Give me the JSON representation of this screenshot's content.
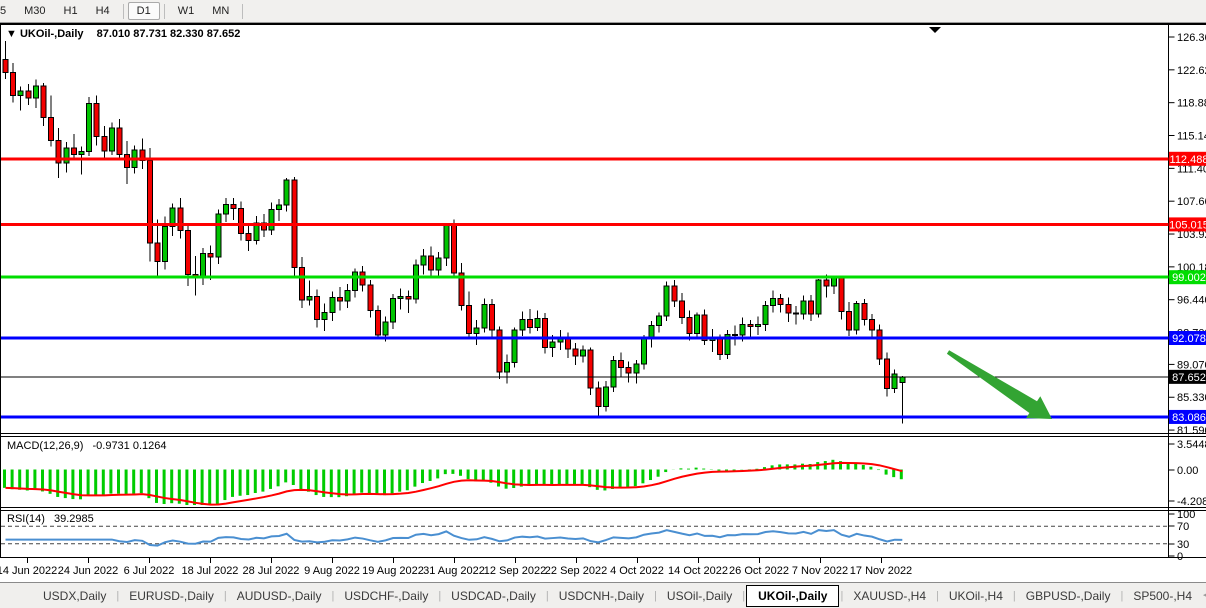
{
  "toolbar": {
    "items": [
      "5",
      "M30",
      "H1",
      "H4",
      "D1",
      "W1",
      "MN"
    ],
    "active": "D1"
  },
  "tabs": {
    "items": [
      "USDX,Daily",
      "EURUSD-,Daily",
      "AUDUSD-,Daily",
      "USDCHF-,Daily",
      "USDCAD-,Daily",
      "USDCNH-,Daily",
      "USOil-,Daily",
      "UKOil-,Daily",
      "XAUUSD-,H4",
      "UKOil-,H4",
      "GBPUSD-,Daily",
      "SP500-,H4"
    ],
    "active_index": 7,
    "nav_left_icon": "◄",
    "nav_right_icon": "►"
  },
  "chart_data": {
    "type": "candlestick",
    "symbol": "UKOil-,Daily",
    "timeframe": "Daily",
    "title_ohlc": "87.010 87.731 82.330 87.652",
    "dropdown_icon": "▼",
    "colors": {
      "bull": "#00c400",
      "bear": "#f40000",
      "wick": "#000000",
      "level_red": "#ff0000",
      "level_green": "#00dd00",
      "level_blue": "#0000ff",
      "level_black": "#000000",
      "arrow_green": "#33a433",
      "macd_bar": "#00cc00",
      "macd_signal": "#ff0000",
      "rsi_line": "#4a8fd1"
    },
    "y_ticks": [
      "126.360",
      "122.620",
      "118.880",
      "115.140",
      "111.400",
      "107.660",
      "103.920",
      "100.180",
      "96.440",
      "92.700",
      "89.070",
      "85.330",
      "81.590"
    ],
    "x_labels": [
      "14 Jun 2022",
      "24 Jun 2022",
      "6 Jul 2022",
      "18 Jul 2022",
      "28 Jul 2022",
      "9 Aug 2022",
      "19 Aug 2022",
      "31 Aug 2022",
      "12 Sep 2022",
      "22 Sep 2022",
      "4 Oct 2022",
      "14 Oct 2022",
      "26 Oct 2022",
      "7 Nov 2022",
      "17 Nov 2022"
    ],
    "levels": [
      {
        "price": 112.488,
        "label": "112.488",
        "color": "#ff0000",
        "thickness": 3
      },
      {
        "price": 105.015,
        "label": "105.015",
        "color": "#ff0000",
        "thickness": 3
      },
      {
        "price": 99.002,
        "label": "99.002",
        "color": "#00dd00",
        "thickness": 3
      },
      {
        "price": 92.078,
        "label": "92.078",
        "color": "#0000ff",
        "thickness": 3
      },
      {
        "price": 87.652,
        "label": "87.652",
        "color": "#000000",
        "thickness": 1
      },
      {
        "price": 83.086,
        "label": "83.086",
        "color": "#0000ff",
        "thickness": 3
      }
    ],
    "candles": [
      [
        123.8,
        125.9,
        121.6,
        122.3
      ],
      [
        122.3,
        123.4,
        118.9,
        119.7
      ],
      [
        119.7,
        120.7,
        118.0,
        120.2
      ],
      [
        120.2,
        121.0,
        118.6,
        119.4
      ],
      [
        119.4,
        121.5,
        118.3,
        120.8
      ],
      [
        120.8,
        121.1,
        116.2,
        117.2
      ],
      [
        117.2,
        119.7,
        113.9,
        114.6
      ],
      [
        114.6,
        116.0,
        110.3,
        112.0
      ],
      [
        112.0,
        114.4,
        110.9,
        113.7
      ],
      [
        113.7,
        115.3,
        112.5,
        113.0
      ],
      [
        113.0,
        113.9,
        110.7,
        113.3
      ],
      [
        113.3,
        119.5,
        112.8,
        118.8
      ],
      [
        118.8,
        119.7,
        114.0,
        115.0
      ],
      [
        115.0,
        116.2,
        112.6,
        113.4
      ],
      [
        113.4,
        116.6,
        112.9,
        116.0
      ],
      [
        116.0,
        117.0,
        112.4,
        113.0
      ],
      [
        113.0,
        114.5,
        109.6,
        111.5
      ],
      [
        111.5,
        114.0,
        110.8,
        113.5
      ],
      [
        113.5,
        114.8,
        111.3,
        112.3
      ],
      [
        112.3,
        113.7,
        100.8,
        102.9
      ],
      [
        102.9,
        105.6,
        99.0,
        100.8
      ],
      [
        100.8,
        105.9,
        99.9,
        104.8
      ],
      [
        104.8,
        107.4,
        103.7,
        106.9
      ],
      [
        106.9,
        108.0,
        103.4,
        104.3
      ],
      [
        104.3,
        105.0,
        98.0,
        99.3
      ],
      [
        99.3,
        101.4,
        96.9,
        99.0
      ],
      [
        99.0,
        102.3,
        98.1,
        101.7
      ],
      [
        101.7,
        102.6,
        98.7,
        101.3
      ],
      [
        101.3,
        106.7,
        100.5,
        106.2
      ],
      [
        106.2,
        108.0,
        105.3,
        107.3
      ],
      [
        107.3,
        108.0,
        105.5,
        106.8
      ],
      [
        106.8,
        107.6,
        103.2,
        104.0
      ],
      [
        104.0,
        105.0,
        102.0,
        103.2
      ],
      [
        103.2,
        106.0,
        102.7,
        105.2
      ],
      [
        105.2,
        106.2,
        103.6,
        104.4
      ],
      [
        104.4,
        107.5,
        103.8,
        106.7
      ],
      [
        106.7,
        107.9,
        105.4,
        107.2
      ],
      [
        107.2,
        110.3,
        106.5,
        110.1
      ],
      [
        110.1,
        110.4,
        99.2,
        100.1
      ],
      [
        100.1,
        101.3,
        95.5,
        96.4
      ],
      [
        96.4,
        98.6,
        95.8,
        96.8
      ],
      [
        96.8,
        97.6,
        93.3,
        94.2
      ],
      [
        94.2,
        96.0,
        92.9,
        95.0
      ],
      [
        95.0,
        97.4,
        94.0,
        96.7
      ],
      [
        96.7,
        97.9,
        95.2,
        96.3
      ],
      [
        96.3,
        98.2,
        95.5,
        97.5
      ],
      [
        97.5,
        100.0,
        96.7,
        99.6
      ],
      [
        99.6,
        100.3,
        97.4,
        98.1
      ],
      [
        98.1,
        98.7,
        94.4,
        95.2
      ],
      [
        95.2,
        95.8,
        91.9,
        92.4
      ],
      [
        92.4,
        94.5,
        91.7,
        93.9
      ],
      [
        93.9,
        97.1,
        93.1,
        96.6
      ],
      [
        96.6,
        97.7,
        95.3,
        96.8
      ],
      [
        96.8,
        97.5,
        94.9,
        96.5
      ],
      [
        96.5,
        101.0,
        96.0,
        100.4
      ],
      [
        100.4,
        102.2,
        99.3,
        101.4
      ],
      [
        101.4,
        102.5,
        98.9,
        99.8
      ],
      [
        99.8,
        101.9,
        99.0,
        101.2
      ],
      [
        101.2,
        105.1,
        100.3,
        104.9
      ],
      [
        104.9,
        105.6,
        98.9,
        99.5
      ],
      [
        99.5,
        100.6,
        95.2,
        95.8
      ],
      [
        95.8,
        97.4,
        91.9,
        92.6
      ],
      [
        92.6,
        94.1,
        91.3,
        93.2
      ],
      [
        93.2,
        96.6,
        92.7,
        95.9
      ],
      [
        95.9,
        96.5,
        92.2,
        93.0
      ],
      [
        93.0,
        93.4,
        87.4,
        88.2
      ],
      [
        88.2,
        90.2,
        86.9,
        89.3
      ],
      [
        89.3,
        93.3,
        88.7,
        93.0
      ],
      [
        93.0,
        95.1,
        92.3,
        94.2
      ],
      [
        94.2,
        95.4,
        92.6,
        93.3
      ],
      [
        93.3,
        95.2,
        92.9,
        94.3
      ],
      [
        94.3,
        94.9,
        90.3,
        91.0
      ],
      [
        91.0,
        92.4,
        89.9,
        91.6
      ],
      [
        91.6,
        93.0,
        90.7,
        92.2
      ],
      [
        92.2,
        92.7,
        89.8,
        90.8
      ],
      [
        90.8,
        91.5,
        89.0,
        90.0
      ],
      [
        90.0,
        91.2,
        89.3,
        90.7
      ],
      [
        90.7,
        91.0,
        85.6,
        86.4
      ],
      [
        86.4,
        87.1,
        83.2,
        84.3
      ],
      [
        84.3,
        87.2,
        83.7,
        86.5
      ],
      [
        86.5,
        90.0,
        85.9,
        89.5
      ],
      [
        89.5,
        90.4,
        87.7,
        88.7
      ],
      [
        88.7,
        89.4,
        87.0,
        88.1
      ],
      [
        88.1,
        89.6,
        86.9,
        89.1
      ],
      [
        89.1,
        92.4,
        88.5,
        92.0
      ],
      [
        92.0,
        94.0,
        91.0,
        93.5
      ],
      [
        93.5,
        95.0,
        92.7,
        94.6
      ],
      [
        94.6,
        98.5,
        94.0,
        98.0
      ],
      [
        98.0,
        98.7,
        95.6,
        96.3
      ],
      [
        96.3,
        97.2,
        93.7,
        94.4
      ],
      [
        94.4,
        95.2,
        91.8,
        92.6
      ],
      [
        92.6,
        95.0,
        92.0,
        94.7
      ],
      [
        94.7,
        95.3,
        91.3,
        91.8
      ],
      [
        91.8,
        93.1,
        90.5,
        92.0
      ],
      [
        92.0,
        92.5,
        89.6,
        90.2
      ],
      [
        90.2,
        93.0,
        89.7,
        92.5
      ],
      [
        92.5,
        93.5,
        91.2,
        92.4
      ],
      [
        92.4,
        94.4,
        91.7,
        93.6
      ],
      [
        93.6,
        94.1,
        92.0,
        93.4
      ],
      [
        93.4,
        94.5,
        92.4,
        93.6
      ],
      [
        93.6,
        96.3,
        92.9,
        95.8
      ],
      [
        95.8,
        97.5,
        95.0,
        96.6
      ],
      [
        96.6,
        97.1,
        95.0,
        95.9
      ],
      [
        95.9,
        96.7,
        93.9,
        94.9
      ],
      [
        94.9,
        95.7,
        93.6,
        94.8
      ],
      [
        94.8,
        96.9,
        94.2,
        96.3
      ],
      [
        96.3,
        97.0,
        94.0,
        94.8
      ],
      [
        94.8,
        98.8,
        94.4,
        98.7
      ],
      [
        98.7,
        99.3,
        96.7,
        98.0
      ],
      [
        98.0,
        99.1,
        97.1,
        98.9
      ],
      [
        98.9,
        99.2,
        94.2,
        95.1
      ],
      [
        95.1,
        96.2,
        92.3,
        93.0
      ],
      [
        93.0,
        96.3,
        92.5,
        96.0
      ],
      [
        96.0,
        96.5,
        93.5,
        94.2
      ],
      [
        94.2,
        94.8,
        92.2,
        93.0
      ],
      [
        93.0,
        93.6,
        89.0,
        89.7
      ],
      [
        89.7,
        90.4,
        85.4,
        86.3
      ],
      [
        86.3,
        88.5,
        85.8,
        88.0
      ],
      [
        87.0,
        87.731,
        82.33,
        87.652
      ]
    ],
    "macd": {
      "label": "MACD(12,26,9)",
      "display": "-0.9731 0.1264",
      "axis": [
        "3.5448",
        "0.00",
        "-4.2086"
      ]
    },
    "rsi": {
      "label": "RSI(14)",
      "display": "39.2985",
      "axis": [
        "100",
        "70",
        "30",
        "0"
      ],
      "levels": [
        70,
        30
      ]
    },
    "annotations": [
      {
        "shape": "trend-arrow-down-right",
        "color": "#33a433"
      },
      {
        "shape": "top-marker-triangle",
        "color": "#000000"
      }
    ]
  }
}
